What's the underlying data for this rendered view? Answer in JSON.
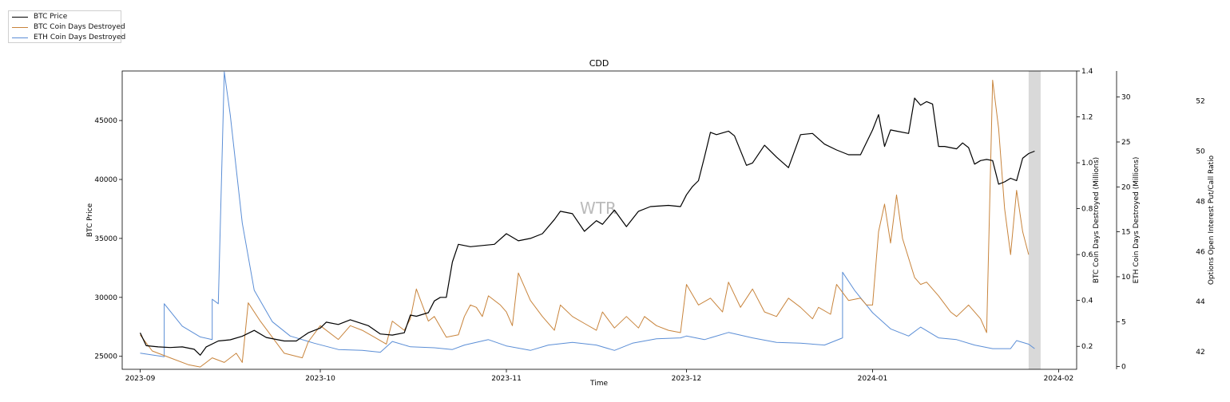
{
  "chart_data": {
    "type": "line",
    "title": "CDD",
    "xlabel": "Time",
    "watermark": "WTR",
    "x_ticks": [
      "2023-09",
      "2023-10",
      "2023-11",
      "2023-12",
      "2024-01",
      "2024-02"
    ],
    "x_range": [
      "2023-08-29",
      "2024-02-04"
    ],
    "shaded_region": [
      "2024-01-27",
      "2024-01-29"
    ],
    "axes": {
      "left": {
        "label": "BTC Price",
        "ylim": [
          23900,
          49200
        ],
        "ticks": [
          25000,
          30000,
          35000,
          40000,
          45000
        ]
      },
      "right1": {
        "label": "BTC Coin Days Destroyed (Millions)",
        "ylim": [
          0.1,
          1.4
        ],
        "ticks": [
          0.2,
          0.4,
          0.6,
          0.8,
          1.0,
          1.2,
          1.4
        ]
      },
      "right2": {
        "label": "ETH Coin Days Destroyed (Millions)",
        "ylim": [
          -0.3,
          32.9
        ],
        "ticks": [
          0,
          5,
          10,
          15,
          20,
          25,
          30
        ]
      },
      "right3": {
        "label": "Options Open Interest Put/Call Ratio",
        "ylim": [
          41.3,
          53.2
        ],
        "ticks": [
          42,
          44,
          46,
          48,
          50,
          52
        ]
      }
    },
    "legend_position": "top-left",
    "series": [
      {
        "name": "BTC Price",
        "axis": "left",
        "color": "#000000",
        "points": [
          [
            "2023-09-01",
            27000
          ],
          [
            "2023-09-02",
            25900
          ],
          [
            "2023-09-04",
            25800
          ],
          [
            "2023-09-06",
            25750
          ],
          [
            "2023-09-08",
            25800
          ],
          [
            "2023-09-10",
            25600
          ],
          [
            "2023-09-11",
            25100
          ],
          [
            "2023-09-12",
            25800
          ],
          [
            "2023-09-14",
            26300
          ],
          [
            "2023-09-16",
            26400
          ],
          [
            "2023-09-18",
            26700
          ],
          [
            "2023-09-20",
            27200
          ],
          [
            "2023-09-22",
            26600
          ],
          [
            "2023-09-25",
            26300
          ],
          [
            "2023-09-27",
            26300
          ],
          [
            "2023-09-29",
            27000
          ],
          [
            "2023-10-01",
            27400
          ],
          [
            "2023-10-02",
            27900
          ],
          [
            "2023-10-04",
            27700
          ],
          [
            "2023-10-06",
            28100
          ],
          [
            "2023-10-09",
            27600
          ],
          [
            "2023-10-11",
            26900
          ],
          [
            "2023-10-13",
            26800
          ],
          [
            "2023-10-15",
            27000
          ],
          [
            "2023-10-16",
            28500
          ],
          [
            "2023-10-17",
            28400
          ],
          [
            "2023-10-19",
            28700
          ],
          [
            "2023-10-20",
            29700
          ],
          [
            "2023-10-21",
            30000
          ],
          [
            "2023-10-22",
            30000
          ],
          [
            "2023-10-23",
            33000
          ],
          [
            "2023-10-24",
            34500
          ],
          [
            "2023-10-26",
            34300
          ],
          [
            "2023-10-28",
            34400
          ],
          [
            "2023-10-30",
            34500
          ],
          [
            "2023-11-01",
            35400
          ],
          [
            "2023-11-03",
            34800
          ],
          [
            "2023-11-05",
            35000
          ],
          [
            "2023-11-07",
            35400
          ],
          [
            "2023-11-09",
            36600
          ],
          [
            "2023-11-10",
            37300
          ],
          [
            "2023-11-12",
            37100
          ],
          [
            "2023-11-14",
            35600
          ],
          [
            "2023-11-16",
            36500
          ],
          [
            "2023-11-17",
            36200
          ],
          [
            "2023-11-19",
            37400
          ],
          [
            "2023-11-21",
            36000
          ],
          [
            "2023-11-23",
            37300
          ],
          [
            "2023-11-25",
            37700
          ],
          [
            "2023-11-28",
            37800
          ],
          [
            "2023-11-30",
            37700
          ],
          [
            "2023-12-01",
            38700
          ],
          [
            "2023-12-02",
            39400
          ],
          [
            "2023-12-03",
            39900
          ],
          [
            "2023-12-04",
            41900
          ],
          [
            "2023-12-05",
            44000
          ],
          [
            "2023-12-06",
            43800
          ],
          [
            "2023-12-08",
            44100
          ],
          [
            "2023-12-09",
            43700
          ],
          [
            "2023-12-11",
            41200
          ],
          [
            "2023-12-12",
            41400
          ],
          [
            "2023-12-14",
            42900
          ],
          [
            "2023-12-16",
            41900
          ],
          [
            "2023-12-18",
            41000
          ],
          [
            "2023-12-20",
            43800
          ],
          [
            "2023-12-22",
            43900
          ],
          [
            "2023-12-24",
            43000
          ],
          [
            "2023-12-26",
            42500
          ],
          [
            "2023-12-28",
            42100
          ],
          [
            "2023-12-30",
            42100
          ],
          [
            "2024-01-01",
            44200
          ],
          [
            "2024-01-02",
            45500
          ],
          [
            "2024-01-03",
            42800
          ],
          [
            "2024-01-04",
            44200
          ],
          [
            "2024-01-05",
            44100
          ],
          [
            "2024-01-07",
            43900
          ],
          [
            "2024-01-08",
            46900
          ],
          [
            "2024-01-09",
            46300
          ],
          [
            "2024-01-10",
            46600
          ],
          [
            "2024-01-11",
            46400
          ],
          [
            "2024-01-12",
            42800
          ],
          [
            "2024-01-13",
            42800
          ],
          [
            "2024-01-15",
            42600
          ],
          [
            "2024-01-16",
            43100
          ],
          [
            "2024-01-17",
            42700
          ],
          [
            "2024-01-18",
            41300
          ],
          [
            "2024-01-19",
            41600
          ],
          [
            "2024-01-20",
            41700
          ],
          [
            "2024-01-21",
            41600
          ],
          [
            "2024-01-22",
            39600
          ],
          [
            "2024-01-23",
            39800
          ],
          [
            "2024-01-24",
            40100
          ],
          [
            "2024-01-25",
            39900
          ],
          [
            "2024-01-26",
            41800
          ],
          [
            "2024-01-27",
            42200
          ],
          [
            "2024-01-28",
            42400
          ]
        ]
      },
      {
        "name": "BTC Coin Days Destroyed",
        "axis": "right1",
        "color": "#c8843c",
        "points": [
          [
            "2023-09-01",
            0.25
          ],
          [
            "2023-09-03",
            0.18
          ],
          [
            "2023-09-06",
            0.15
          ],
          [
            "2023-09-09",
            0.12
          ],
          [
            "2023-09-11",
            0.11
          ],
          [
            "2023-09-13",
            0.15
          ],
          [
            "2023-09-15",
            0.13
          ],
          [
            "2023-09-17",
            0.17
          ],
          [
            "2023-09-18",
            0.13
          ],
          [
            "2023-09-19",
            0.39
          ],
          [
            "2023-09-21",
            0.31
          ],
          [
            "2023-09-25",
            0.17
          ],
          [
            "2023-09-28",
            0.15
          ],
          [
            "2023-09-29",
            0.22
          ],
          [
            "2023-10-01",
            0.29
          ],
          [
            "2023-10-04",
            0.23
          ],
          [
            "2023-10-06",
            0.29
          ],
          [
            "2023-10-08",
            0.27
          ],
          [
            "2023-10-10",
            0.24
          ],
          [
            "2023-10-12",
            0.21
          ],
          [
            "2023-10-13",
            0.31
          ],
          [
            "2023-10-15",
            0.27
          ],
          [
            "2023-10-16",
            0.32
          ],
          [
            "2023-10-17",
            0.45
          ],
          [
            "2023-10-19",
            0.31
          ],
          [
            "2023-10-20",
            0.33
          ],
          [
            "2023-10-22",
            0.24
          ],
          [
            "2023-10-24",
            0.25
          ],
          [
            "2023-10-25",
            0.33
          ],
          [
            "2023-10-26",
            0.38
          ],
          [
            "2023-10-27",
            0.37
          ],
          [
            "2023-10-28",
            0.33
          ],
          [
            "2023-10-29",
            0.42
          ],
          [
            "2023-10-31",
            0.38
          ],
          [
            "2023-11-01",
            0.35
          ],
          [
            "2023-11-02",
            0.29
          ],
          [
            "2023-11-03",
            0.52
          ],
          [
            "2023-11-05",
            0.4
          ],
          [
            "2023-11-07",
            0.33
          ],
          [
            "2023-11-09",
            0.27
          ],
          [
            "2023-11-10",
            0.38
          ],
          [
            "2023-11-12",
            0.33
          ],
          [
            "2023-11-14",
            0.3
          ],
          [
            "2023-11-16",
            0.27
          ],
          [
            "2023-11-17",
            0.35
          ],
          [
            "2023-11-19",
            0.28
          ],
          [
            "2023-11-21",
            0.33
          ],
          [
            "2023-11-23",
            0.28
          ],
          [
            "2023-11-24",
            0.33
          ],
          [
            "2023-11-26",
            0.29
          ],
          [
            "2023-11-28",
            0.27
          ],
          [
            "2023-11-30",
            0.26
          ],
          [
            "2023-12-01",
            0.47
          ],
          [
            "2023-12-03",
            0.38
          ],
          [
            "2023-12-05",
            0.41
          ],
          [
            "2023-12-07",
            0.35
          ],
          [
            "2023-12-08",
            0.48
          ],
          [
            "2023-12-10",
            0.37
          ],
          [
            "2023-12-12",
            0.45
          ],
          [
            "2023-12-14",
            0.35
          ],
          [
            "2023-12-16",
            0.33
          ],
          [
            "2023-12-18",
            0.41
          ],
          [
            "2023-12-20",
            0.37
          ],
          [
            "2023-12-22",
            0.32
          ],
          [
            "2023-12-23",
            0.37
          ],
          [
            "2023-12-25",
            0.34
          ],
          [
            "2023-12-26",
            0.47
          ],
          [
            "2023-12-28",
            0.4
          ],
          [
            "2023-12-30",
            0.41
          ],
          [
            "2023-12-31",
            0.38
          ],
          [
            "2024-01-01",
            0.38
          ],
          [
            "2024-01-02",
            0.7
          ],
          [
            "2024-01-03",
            0.82
          ],
          [
            "2024-01-04",
            0.65
          ],
          [
            "2024-01-05",
            0.86
          ],
          [
            "2024-01-06",
            0.67
          ],
          [
            "2024-01-08",
            0.5
          ],
          [
            "2024-01-09",
            0.47
          ],
          [
            "2024-01-10",
            0.48
          ],
          [
            "2024-01-12",
            0.42
          ],
          [
            "2024-01-14",
            0.35
          ],
          [
            "2024-01-15",
            0.33
          ],
          [
            "2024-01-17",
            0.38
          ],
          [
            "2024-01-19",
            0.32
          ],
          [
            "2024-01-20",
            0.26
          ],
          [
            "2024-01-21",
            1.36
          ],
          [
            "2024-01-22",
            1.15
          ],
          [
            "2024-01-23",
            0.8
          ],
          [
            "2024-01-24",
            0.6
          ],
          [
            "2024-01-25",
            0.88
          ],
          [
            "2024-01-26",
            0.7
          ],
          [
            "2024-01-27",
            0.6
          ]
        ]
      },
      {
        "name": "ETH Coin Days Destroyed",
        "axis": "right2",
        "color": "#5b8ed6",
        "points": [
          [
            "2023-09-01",
            1.5
          ],
          [
            "2023-09-04",
            1.2
          ],
          [
            "2023-09-05",
            1.1
          ],
          [
            "2023-09-05",
            7.0
          ],
          [
            "2023-09-08",
            4.5
          ],
          [
            "2023-09-11",
            3.3
          ],
          [
            "2023-09-13",
            3.0
          ],
          [
            "2023-09-13",
            7.5
          ],
          [
            "2023-09-14",
            7.0
          ],
          [
            "2023-09-15",
            32.8
          ],
          [
            "2023-09-16",
            28.0
          ],
          [
            "2023-09-18",
            16.0
          ],
          [
            "2023-09-20",
            8.5
          ],
          [
            "2023-09-23",
            5.0
          ],
          [
            "2023-09-26",
            3.4
          ],
          [
            "2023-09-30",
            2.6
          ],
          [
            "2023-10-04",
            1.9
          ],
          [
            "2023-10-08",
            1.8
          ],
          [
            "2023-10-11",
            1.6
          ],
          [
            "2023-10-13",
            2.8
          ],
          [
            "2023-10-16",
            2.2
          ],
          [
            "2023-10-20",
            2.1
          ],
          [
            "2023-10-23",
            1.9
          ],
          [
            "2023-10-25",
            2.4
          ],
          [
            "2023-10-29",
            3.0
          ],
          [
            "2023-11-01",
            2.3
          ],
          [
            "2023-11-05",
            1.8
          ],
          [
            "2023-11-08",
            2.4
          ],
          [
            "2023-11-12",
            2.7
          ],
          [
            "2023-11-16",
            2.4
          ],
          [
            "2023-11-19",
            1.8
          ],
          [
            "2023-11-22",
            2.6
          ],
          [
            "2023-11-26",
            3.1
          ],
          [
            "2023-11-30",
            3.2
          ],
          [
            "2023-12-01",
            3.4
          ],
          [
            "2023-12-04",
            3.0
          ],
          [
            "2023-12-08",
            3.8
          ],
          [
            "2023-12-12",
            3.2
          ],
          [
            "2023-12-16",
            2.7
          ],
          [
            "2023-12-20",
            2.6
          ],
          [
            "2023-12-24",
            2.4
          ],
          [
            "2023-12-27",
            3.2
          ],
          [
            "2023-12-27",
            10.5
          ],
          [
            "2023-12-29",
            8.5
          ],
          [
            "2024-01-01",
            6.0
          ],
          [
            "2024-01-04",
            4.2
          ],
          [
            "2024-01-07",
            3.4
          ],
          [
            "2024-01-09",
            4.4
          ],
          [
            "2024-01-12",
            3.2
          ],
          [
            "2024-01-15",
            3.0
          ],
          [
            "2024-01-18",
            2.4
          ],
          [
            "2024-01-21",
            2.0
          ],
          [
            "2024-01-24",
            2.0
          ],
          [
            "2024-01-25",
            2.9
          ],
          [
            "2024-01-27",
            2.5
          ],
          [
            "2024-01-28",
            2.0
          ]
        ]
      }
    ]
  }
}
